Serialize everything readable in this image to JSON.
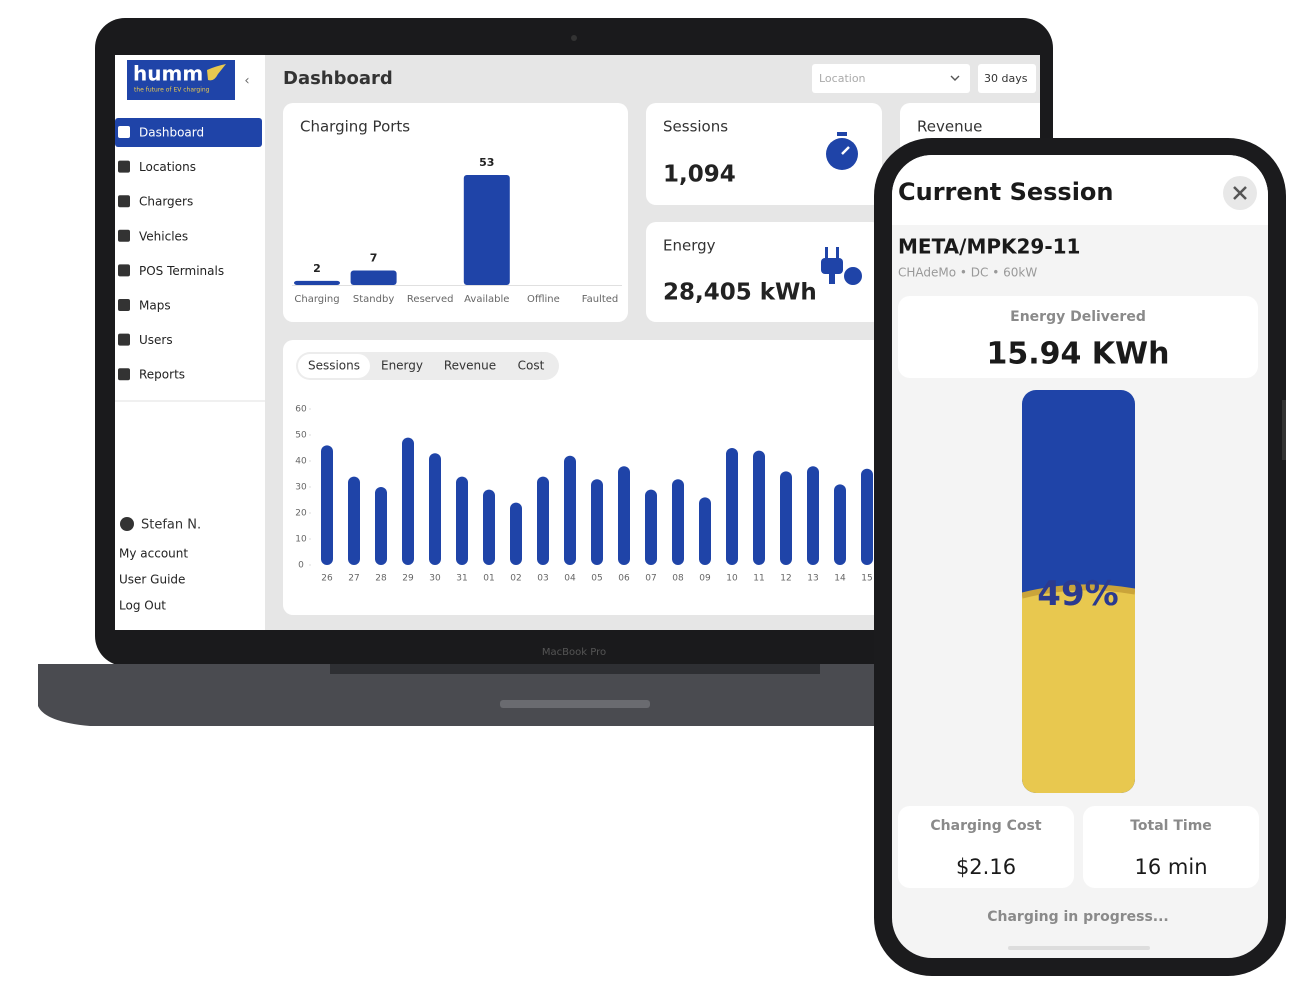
{
  "sidebar": {
    "logo": "humm",
    "tagline": "the future of EV charging",
    "nav": [
      "Dashboard",
      "Locations",
      "Chargers",
      "Vehicles",
      "POS Terminals",
      "Maps",
      "Users",
      "Reports"
    ],
    "user": "Stefan N.",
    "links": [
      "My account",
      "User Guide",
      "Log Out"
    ]
  },
  "header": {
    "title": "Dashboard",
    "location": "Location",
    "period": "30 days"
  },
  "charging_ports": {
    "type": "bar",
    "title": "Charging Ports",
    "categories": [
      "Charging",
      "Standby",
      "Reserved",
      "Available",
      "Offline",
      "Faulted"
    ],
    "values": [
      2,
      7,
      0,
      53,
      0,
      0
    ],
    "color": "#1f44a8"
  },
  "sessions_card": {
    "title": "Sessions",
    "value": "1,094"
  },
  "energy_card": {
    "title": "Energy",
    "value": "28,405 kWh"
  },
  "revenue_card": {
    "title": "Revenue"
  },
  "tabs": [
    "Sessions",
    "Energy",
    "Revenue",
    "Cost"
  ],
  "sessions_chart": {
    "type": "bar",
    "categories": [
      "26",
      "27",
      "28",
      "29",
      "30",
      "31",
      "01",
      "02",
      "03",
      "04",
      "05",
      "06",
      "07",
      "08",
      "09",
      "10",
      "11",
      "12",
      "13",
      "14",
      "15"
    ],
    "values": [
      46,
      34,
      30,
      49,
      43,
      34,
      29,
      24,
      34,
      42,
      33,
      38,
      29,
      33,
      26,
      45,
      44,
      36,
      38,
      31,
      37
    ],
    "color": "#1f44a8",
    "ylim": [
      0,
      60
    ],
    "yticks": [
      0,
      10,
      20,
      30,
      40,
      50,
      60
    ]
  },
  "laptop_label": "MacBook Pro",
  "phone": {
    "title": "Current Session",
    "charger": "META/MPK29-11",
    "details": "CHAdeMo • DC • 60kW",
    "energy_label": "Energy Delivered",
    "energy_value": "15.94 KWh",
    "gauge": {
      "value": 49,
      "label": "49%"
    },
    "cost_label": "Charging Cost",
    "cost_value": "$2.16",
    "time_label": "Total Time",
    "time_value": "16 min",
    "status": "Charging in progress..."
  }
}
